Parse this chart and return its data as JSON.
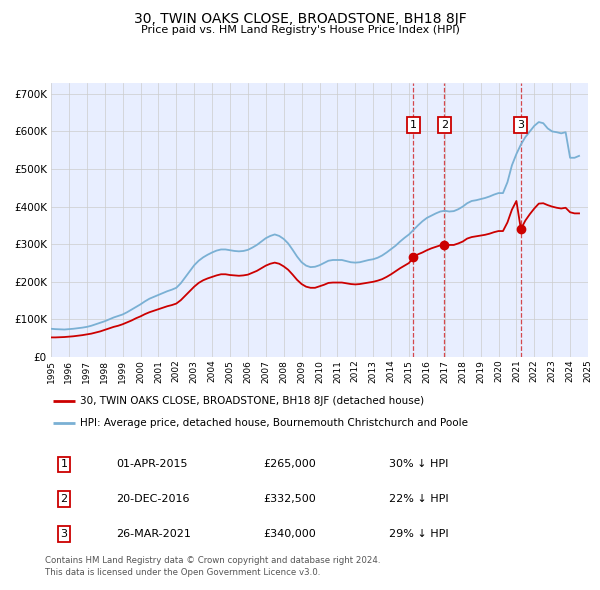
{
  "title": "30, TWIN OAKS CLOSE, BROADSTONE, BH18 8JF",
  "subtitle": "Price paid vs. HM Land Registry's House Price Index (HPI)",
  "background_color": "#ffffff",
  "plot_bg_color": "#e8eeff",
  "grid_color": "#cccccc",
  "ylim": [
    0,
    730000
  ],
  "yticks": [
    0,
    100000,
    200000,
    300000,
    400000,
    500000,
    600000,
    700000
  ],
  "ytick_labels": [
    "£0",
    "£100K",
    "£200K",
    "£300K",
    "£400K",
    "£500K",
    "£600K",
    "£700K"
  ],
  "sale_color": "#cc0000",
  "hpi_color": "#7ab0d4",
  "sale_label": "30, TWIN OAKS CLOSE, BROADSTONE, BH18 8JF (detached house)",
  "hpi_label": "HPI: Average price, detached house, Bournemouth Christchurch and Poole",
  "transactions": [
    {
      "num": 1,
      "date": "01-APR-2015",
      "price": "265,000",
      "pct": "30%",
      "x_year": 2015.25
    },
    {
      "num": 2,
      "date": "20-DEC-2016",
      "price": "332,500",
      "pct": "22%",
      "x_year": 2016.97
    },
    {
      "num": 3,
      "date": "26-MAR-2021",
      "price": "340,000",
      "pct": "29%",
      "x_year": 2021.23
    }
  ],
  "footer_line1": "Contains HM Land Registry data © Crown copyright and database right 2024.",
  "footer_line2": "This data is licensed under the Open Government Licence v3.0.",
  "hpi_x": [
    1995.0,
    1995.25,
    1995.5,
    1995.75,
    1996.0,
    1996.25,
    1996.5,
    1996.75,
    1997.0,
    1997.25,
    1997.5,
    1997.75,
    1998.0,
    1998.25,
    1998.5,
    1998.75,
    1999.0,
    1999.25,
    1999.5,
    1999.75,
    2000.0,
    2000.25,
    2000.5,
    2000.75,
    2001.0,
    2001.25,
    2001.5,
    2001.75,
    2002.0,
    2002.25,
    2002.5,
    2002.75,
    2003.0,
    2003.25,
    2003.5,
    2003.75,
    2004.0,
    2004.25,
    2004.5,
    2004.75,
    2005.0,
    2005.25,
    2005.5,
    2005.75,
    2006.0,
    2006.25,
    2006.5,
    2006.75,
    2007.0,
    2007.25,
    2007.5,
    2007.75,
    2008.0,
    2008.25,
    2008.5,
    2008.75,
    2009.0,
    2009.25,
    2009.5,
    2009.75,
    2010.0,
    2010.25,
    2010.5,
    2010.75,
    2011.0,
    2011.25,
    2011.5,
    2011.75,
    2012.0,
    2012.25,
    2012.5,
    2012.75,
    2013.0,
    2013.25,
    2013.5,
    2013.75,
    2014.0,
    2014.25,
    2014.5,
    2014.75,
    2015.0,
    2015.25,
    2015.5,
    2015.75,
    2016.0,
    2016.25,
    2016.5,
    2016.75,
    2017.0,
    2017.25,
    2017.5,
    2017.75,
    2018.0,
    2018.25,
    2018.5,
    2018.75,
    2019.0,
    2019.25,
    2019.5,
    2019.75,
    2020.0,
    2020.25,
    2020.5,
    2020.75,
    2021.0,
    2021.25,
    2021.5,
    2021.75,
    2022.0,
    2022.25,
    2022.5,
    2022.75,
    2023.0,
    2023.25,
    2023.5,
    2023.75,
    2024.0,
    2024.25,
    2024.5
  ],
  "hpi_y": [
    75000,
    74000,
    73500,
    73000,
    74000,
    75000,
    76500,
    78000,
    80000,
    83000,
    87000,
    91000,
    95000,
    100000,
    105000,
    109000,
    113000,
    119000,
    126000,
    133000,
    140000,
    148000,
    155000,
    160000,
    165000,
    170000,
    175000,
    179000,
    184000,
    196000,
    212000,
    228000,
    244000,
    256000,
    265000,
    272000,
    278000,
    283000,
    286000,
    286000,
    284000,
    282000,
    281000,
    282000,
    285000,
    291000,
    298000,
    307000,
    316000,
    322000,
    326000,
    322000,
    314000,
    302000,
    285000,
    267000,
    252000,
    243000,
    239000,
    240000,
    244000,
    250000,
    256000,
    258000,
    258000,
    258000,
    255000,
    252000,
    251000,
    252000,
    255000,
    258000,
    260000,
    264000,
    270000,
    278000,
    287000,
    296000,
    307000,
    317000,
    326000,
    338000,
    350000,
    361000,
    370000,
    376000,
    382000,
    387000,
    389000,
    387000,
    388000,
    393000,
    400000,
    409000,
    415000,
    417000,
    420000,
    423000,
    427000,
    432000,
    436000,
    436000,
    465000,
    510000,
    540000,
    565000,
    585000,
    600000,
    615000,
    625000,
    622000,
    608000,
    600000,
    598000,
    595000,
    598000,
    530000,
    530000,
    535000
  ],
  "sale_x": [
    1995.0,
    1995.25,
    1995.5,
    1995.75,
    1996.0,
    1996.25,
    1996.5,
    1996.75,
    1997.0,
    1997.25,
    1997.5,
    1997.75,
    1998.0,
    1998.25,
    1998.5,
    1998.75,
    1999.0,
    1999.25,
    1999.5,
    1999.75,
    2000.0,
    2000.25,
    2000.5,
    2000.75,
    2001.0,
    2001.25,
    2001.5,
    2001.75,
    2002.0,
    2002.25,
    2002.5,
    2002.75,
    2003.0,
    2003.25,
    2003.5,
    2003.75,
    2004.0,
    2004.25,
    2004.5,
    2004.75,
    2005.0,
    2005.25,
    2005.5,
    2005.75,
    2006.0,
    2006.25,
    2006.5,
    2006.75,
    2007.0,
    2007.25,
    2007.5,
    2007.75,
    2008.0,
    2008.25,
    2008.5,
    2008.75,
    2009.0,
    2009.25,
    2009.5,
    2009.75,
    2010.0,
    2010.25,
    2010.5,
    2010.75,
    2011.0,
    2011.25,
    2011.5,
    2011.75,
    2012.0,
    2012.25,
    2012.5,
    2012.75,
    2013.0,
    2013.25,
    2013.5,
    2013.75,
    2014.0,
    2014.25,
    2014.5,
    2014.75,
    2015.0,
    2015.25,
    2015.5,
    2015.75,
    2016.0,
    2016.25,
    2016.5,
    2016.75,
    2017.0,
    2017.25,
    2017.5,
    2017.75,
    2018.0,
    2018.25,
    2018.5,
    2018.75,
    2019.0,
    2019.25,
    2019.5,
    2019.75,
    2020.0,
    2020.25,
    2020.5,
    2020.75,
    2021.0,
    2021.25,
    2021.5,
    2021.75,
    2022.0,
    2022.25,
    2022.5,
    2022.75,
    2023.0,
    2023.25,
    2023.5,
    2023.75,
    2024.0,
    2024.25,
    2024.5
  ],
  "sale_y": [
    52000,
    52000,
    52500,
    53000,
    54000,
    55000,
    56500,
    58000,
    60000,
    62000,
    65000,
    68000,
    72000,
    76000,
    80000,
    83000,
    87000,
    92000,
    97000,
    103000,
    108000,
    114000,
    119000,
    123000,
    127000,
    131000,
    135000,
    138000,
    142000,
    151000,
    163000,
    175000,
    187000,
    197000,
    204000,
    209000,
    213000,
    217000,
    220000,
    220000,
    218000,
    217000,
    216000,
    217000,
    219000,
    224000,
    229000,
    236000,
    243000,
    248000,
    251000,
    248000,
    241000,
    232000,
    219000,
    205000,
    194000,
    187000,
    184000,
    184000,
    188000,
    192000,
    197000,
    198000,
    198000,
    198000,
    196000,
    194000,
    193000,
    194000,
    196000,
    198000,
    200000,
    203000,
    207000,
    213000,
    220000,
    228000,
    236000,
    243000,
    250000,
    265000,
    273000,
    278000,
    284000,
    289000,
    293000,
    297000,
    299000,
    298000,
    298000,
    302000,
    307000,
    315000,
    319000,
    321000,
    323000,
    325000,
    328000,
    332000,
    335000,
    335000,
    358000,
    392000,
    415000,
    340000,
    363000,
    380000,
    395000,
    408000,
    409000,
    404000,
    400000,
    397000,
    395000,
    397000,
    385000,
    382000,
    382000
  ],
  "x_min": 1995.0,
  "x_max": 2025.0
}
